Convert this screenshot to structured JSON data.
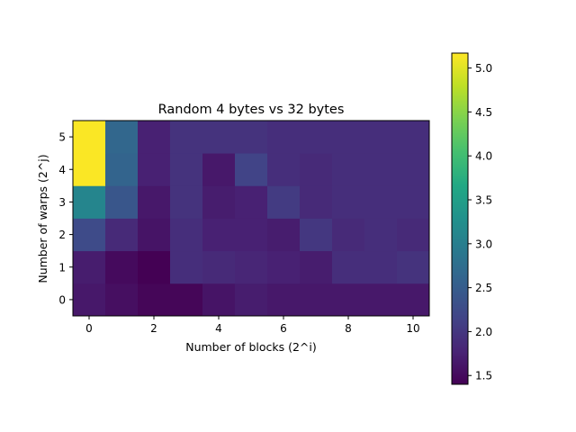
{
  "chart_data": {
    "type": "heatmap",
    "title": "Random 4 bytes vs 32 bytes",
    "xlabel": "Number of blocks (2^i)",
    "ylabel": "Number of warps (2^j)",
    "x": [
      0,
      1,
      2,
      3,
      4,
      5,
      6,
      7,
      8,
      9,
      10
    ],
    "y": [
      0,
      1,
      2,
      3,
      4,
      5
    ],
    "xticks": [
      "0",
      "2",
      "4",
      "6",
      "8",
      "10"
    ],
    "yticks": [
      "0",
      "1",
      "2",
      "3",
      "4",
      "5"
    ],
    "colorbar": {
      "ticks": [
        "1.5",
        "2.0",
        "2.5",
        "3.0",
        "3.5",
        "4.0",
        "4.5",
        "5.0"
      ],
      "vmin": 1.4,
      "vmax": 5.17,
      "colormap": "viridis"
    },
    "values": [
      [
        1.65,
        1.55,
        1.45,
        1.45,
        1.6,
        1.7,
        1.65,
        1.65,
        1.65,
        1.65,
        1.65
      ],
      [
        1.7,
        1.5,
        1.4,
        1.9,
        1.85,
        1.8,
        1.75,
        1.7,
        1.9,
        1.9,
        1.95
      ],
      [
        2.25,
        1.85,
        1.6,
        1.9,
        1.75,
        1.75,
        1.7,
        2.0,
        1.85,
        1.9,
        1.85
      ],
      [
        3.1,
        2.4,
        1.65,
        1.95,
        1.7,
        1.75,
        2.05,
        1.85,
        1.9,
        1.9,
        1.9
      ],
      [
        5.15,
        2.6,
        1.75,
        1.95,
        1.65,
        2.15,
        1.9,
        1.85,
        1.9,
        1.9,
        1.9
      ],
      [
        5.15,
        2.65,
        1.75,
        1.95,
        1.95,
        1.95,
        1.9,
        1.9,
        1.9,
        1.9,
        1.9
      ]
    ]
  }
}
